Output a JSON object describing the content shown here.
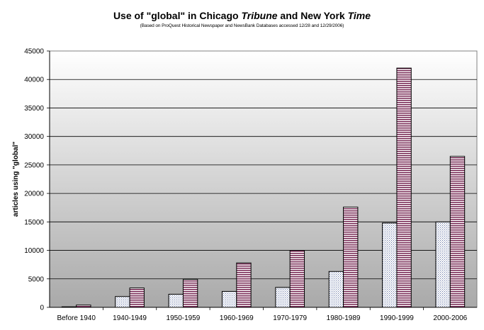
{
  "chart_data": {
    "type": "bar",
    "title_parts": {
      "p1": "Use of \"global\" in Chicago ",
      "p2": "Tribune",
      "p3": "  and New York ",
      "p4": "Time"
    },
    "subtitle": "(Based on ProQuest Historical Newspaper and NewsBank Databases accessed 12/28 and 12/29/2006)",
    "xlabel": "",
    "ylabel": "articles using \"global\"",
    "ylim": [
      0,
      45000
    ],
    "ytick_step": 5000,
    "categories": [
      "Before 1940",
      "1940-1949",
      "1950-1959",
      "1960-1969",
      "1970-1979",
      "1980-1989",
      "1990-1999",
      "2000-2006"
    ],
    "series": [
      {
        "values": [
          100,
          1900,
          2300,
          2800,
          3500,
          6300,
          14800,
          15000
        ],
        "color": "#e8eaf4",
        "pattern": "dots"
      },
      {
        "values": [
          400,
          3400,
          4900,
          7800,
          10000,
          17600,
          42000,
          26500
        ],
        "color": "#7a2d58",
        "pattern": "stripes"
      }
    ],
    "grid": true,
    "legend": "none",
    "plot_background": "gradient-white-to-gray"
  }
}
